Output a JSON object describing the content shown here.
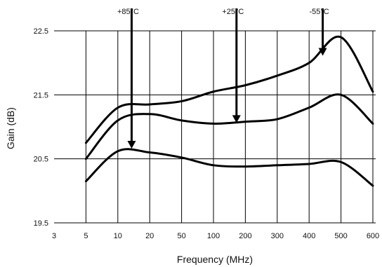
{
  "chart_data": {
    "type": "line",
    "title": "",
    "xlabel": "Frequency (MHz)",
    "ylabel": "Gain (dB)",
    "x_ticks": [
      "3",
      "5",
      "10",
      "20",
      "50",
      "100",
      "200",
      "300",
      "400",
      "500",
      "600"
    ],
    "y_ticks": [
      19.5,
      20.5,
      21.5,
      22.5
    ],
    "y_tick_labels": [
      "19.5",
      "20.5",
      "21.5",
      "22.5"
    ],
    "ylim": [
      19.5,
      22.5
    ],
    "grid": {
      "vertical": true,
      "horizontal": true
    },
    "series": [
      {
        "x": [
          "5",
          "10",
          "20",
          "50",
          "100",
          "200",
          "300",
          "400",
          "500",
          "600"
        ],
        "values": [
          20.75,
          21.3,
          21.35,
          21.4,
          21.55,
          21.65,
          21.8,
          22.0,
          22.4,
          21.55
        ]
      },
      {
        "x": [
          "5",
          "10",
          "20",
          "50",
          "100",
          "200",
          "300",
          "400",
          "500",
          "600"
        ],
        "values": [
          20.5,
          21.1,
          21.2,
          21.1,
          21.05,
          21.08,
          21.12,
          21.3,
          21.5,
          21.05
        ]
      },
      {
        "x": [
          "5",
          "10",
          "20",
          "50",
          "100",
          "200",
          "300",
          "400",
          "500",
          "600"
        ],
        "values": [
          20.15,
          20.62,
          20.6,
          20.52,
          20.4,
          20.38,
          20.4,
          20.42,
          20.45,
          20.08
        ]
      }
    ],
    "annotations": [
      {
        "text": "+85°C",
        "x": 13.5,
        "y": 20.65
      },
      {
        "text": "+25°C",
        "x": 165,
        "y": 21.05
      },
      {
        "text": "-55°C",
        "x": 440,
        "y": 22.1
      }
    ]
  }
}
